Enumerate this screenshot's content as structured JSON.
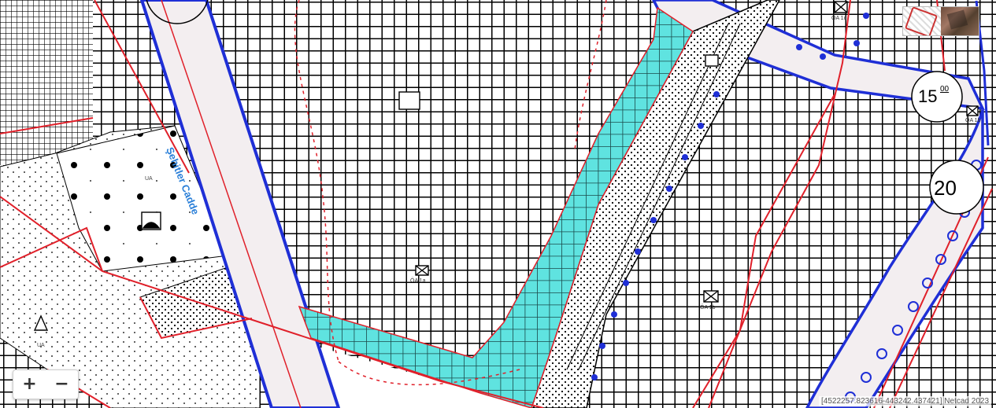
{
  "map": {
    "street_label": "Şehitler Cadde",
    "road_width_labels": [
      "15",
      "00",
      "20"
    ],
    "zone_labels": [
      "UA",
      "UA",
      "ÖA 1a",
      "ÖA 1b",
      "ÖA 1b",
      "ÖA 1c"
    ],
    "colors": {
      "road_edge": "#1f2fd6",
      "parcel_line": "#e0202a",
      "green_strip": "#5fe3e0",
      "grid": "#000000",
      "street_label": "#2a7fd8"
    }
  },
  "controls": {
    "zoom_in": "+",
    "zoom_out": "−"
  },
  "attribution": "[4522257.823616-443242.437421] Netcad 2023"
}
